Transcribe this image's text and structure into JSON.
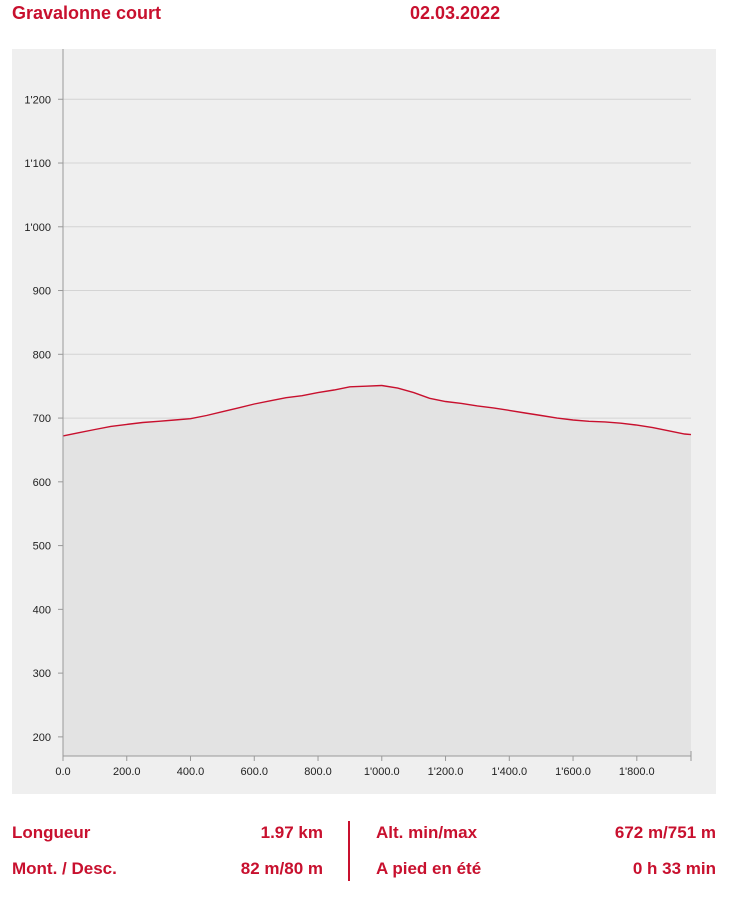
{
  "header": {
    "title": "Gravalonne court",
    "date": "02.03.2022"
  },
  "colors": {
    "accent": "#c8102e",
    "chart_background": "#efefef",
    "area_fill": "#e3e3e3",
    "gridline": "#d4d4d4"
  },
  "chart_data": {
    "type": "area",
    "title": "",
    "xlabel": "",
    "ylabel": "",
    "xlim": [
      0,
      1970
    ],
    "ylim": [
      170,
      1260
    ],
    "x_ticks": [
      0,
      200,
      400,
      600,
      800,
      1000,
      1200,
      1400,
      1600,
      1800
    ],
    "x_tick_labels": [
      "0.0",
      "200.0",
      "400.0",
      "600.0",
      "800.0",
      "1'000.0",
      "1'200.0",
      "1'400.0",
      "1'600.0",
      "1'800.0"
    ],
    "y_ticks": [
      200,
      300,
      400,
      500,
      600,
      700,
      800,
      900,
      1000,
      1100,
      1200
    ],
    "y_tick_labels": [
      "200",
      "300",
      "400",
      "500",
      "600",
      "700",
      "800",
      "900",
      "1'000",
      "1'100",
      "1'200"
    ],
    "grid": "horizontal",
    "legend": "none",
    "x": [
      0,
      50,
      100,
      150,
      200,
      250,
      300,
      350,
      400,
      450,
      500,
      550,
      600,
      650,
      700,
      750,
      800,
      850,
      900,
      950,
      1000,
      1050,
      1100,
      1150,
      1200,
      1250,
      1300,
      1350,
      1400,
      1450,
      1500,
      1550,
      1600,
      1650,
      1700,
      1750,
      1800,
      1850,
      1900,
      1950,
      1970
    ],
    "y": [
      672,
      677,
      682,
      687,
      690,
      693,
      695,
      697,
      699,
      704,
      710,
      716,
      722,
      727,
      732,
      735,
      740,
      744,
      749,
      750,
      751,
      747,
      740,
      731,
      726,
      723,
      719,
      716,
      712,
      708,
      704,
      700,
      697,
      695,
      694,
      692,
      689,
      685,
      680,
      675,
      674
    ]
  },
  "stats": {
    "length_label": "Longueur",
    "length_value": "1.97 km",
    "updown_label": "Mont. / Desc.",
    "updown_value": "82 m/80 m",
    "alt_label": "Alt. min/max",
    "alt_value": "672 m/751 m",
    "walk_label": "A pied en été",
    "walk_value": "0 h 33 min"
  }
}
